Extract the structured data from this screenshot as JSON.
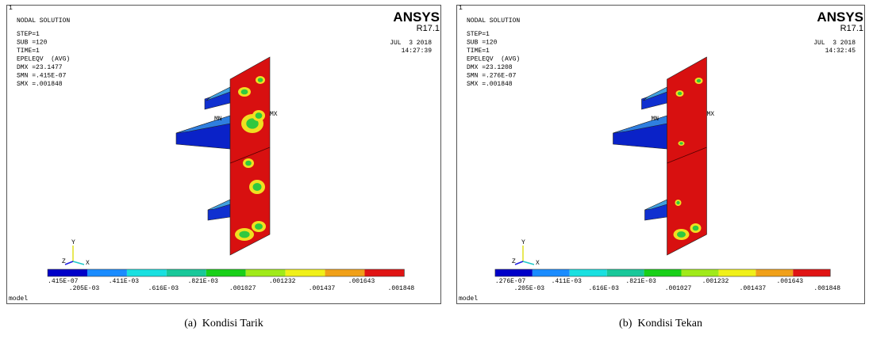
{
  "panels": [
    {
      "index_label": "1",
      "title": "NODAL SOLUTION",
      "info": [
        "STEP=1",
        "SUB =120",
        "TIME=1",
        "EPELEQV  (AVG)",
        "DMX =23.1477",
        "SMN =.415E-07",
        "SMX =.001848"
      ],
      "brand": "ANSYS",
      "version": "R17.1",
      "date": "JUL  3 2018",
      "time": "14:27:39",
      "min_label": "MN",
      "max_label": "MX",
      "axes": [
        "Y",
        "Z",
        "X"
      ],
      "legend": [
        ".415E-07",
        ".205E-03",
        ".411E-03",
        ".616E-03",
        ".821E-03",
        ".001027",
        ".001232",
        ".001437",
        ".001643",
        ".001848"
      ],
      "footer": "model",
      "caption": "(a)  Kondisi Tarik"
    },
    {
      "index_label": "1",
      "title": "NODAL SOLUTION",
      "info": [
        "STEP=1",
        "SUB =120",
        "TIME=1",
        "EPELEQV  (AVG)",
        "DMX =23.1208",
        "SMN =.276E-07",
        "SMX =.001848"
      ],
      "brand": "ANSYS",
      "version": "R17.1",
      "date": "JUL  3 2018",
      "time": "14:32:45",
      "min_label": "MN",
      "max_label": "MX",
      "axes": [
        "Y",
        "Z",
        "X"
      ],
      "legend": [
        ".276E-07",
        ".205E-03",
        ".411E-03",
        ".616E-03",
        ".821E-03",
        ".001027",
        ".001232",
        ".001437",
        ".001643",
        ".001848"
      ],
      "footer": "model",
      "caption": "(b)  Kondisi Tekan"
    }
  ]
}
